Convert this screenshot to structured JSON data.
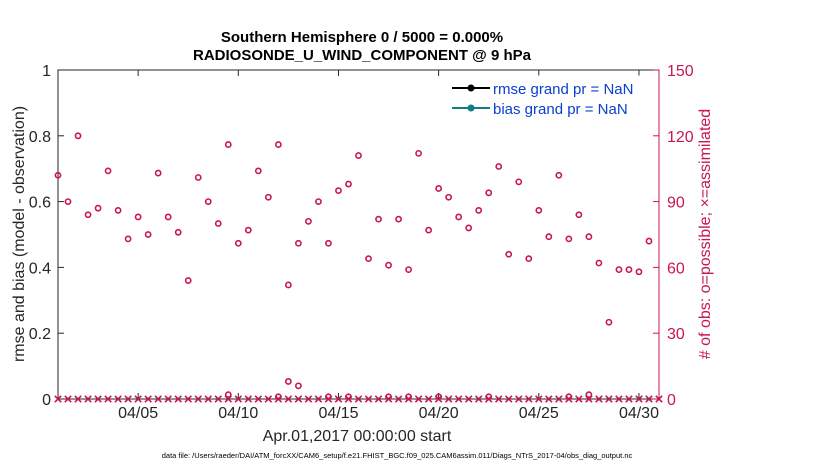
{
  "chart_data": {
    "type": "scatter",
    "title_line1": "Southern Hemisphere 0 / 5000 = 0.000%",
    "title_line2": "RADIOSONDE_U_WIND_COMPONENT @ 9 hPa",
    "xlabel": "Apr.01,2017 00:00:00 start",
    "ylabel_left": "rmse and bias (model - observation)",
    "ylabel_right": "# of obs: o=possible; ×=assimilated",
    "xlim": [
      1,
      31
    ],
    "ylim_left": [
      0,
      1
    ],
    "ylim_right": [
      0,
      150
    ],
    "x_ticks": [
      5,
      10,
      15,
      20,
      25,
      30
    ],
    "x_tick_labels": [
      "04/05",
      "04/10",
      "04/15",
      "04/20",
      "04/25",
      "04/30"
    ],
    "y_left_ticks": [
      0,
      0.2,
      0.4,
      0.6,
      0.8,
      1
    ],
    "y_left_tick_labels": [
      "0",
      "0.2",
      "0.4",
      "0.6",
      "0.8",
      "1"
    ],
    "y_right_ticks": [
      0,
      30,
      60,
      90,
      120,
      150
    ],
    "y_right_tick_labels": [
      "0",
      "30",
      "60",
      "90",
      "120",
      "150"
    ],
    "legend": [
      {
        "label": "rmse grand pr = NaN",
        "color": "#000000"
      },
      {
        "label": "bias grand pr = NaN",
        "color": "#0e7f80"
      }
    ],
    "legend_position": "top-right",
    "colors": {
      "obs": "#c8174e",
      "right_axis": "#c8174e",
      "legend_text": "#0a3fd0"
    },
    "series": [
      {
        "name": "possible",
        "marker": "o",
        "x": [
          1.0,
          1.5,
          2.0,
          2.5,
          3.0,
          3.5,
          4.0,
          4.5,
          5.0,
          5.5,
          6.0,
          6.5,
          7.0,
          7.5,
          8.0,
          8.5,
          9.0,
          9.5,
          10.0,
          10.5,
          11.0,
          11.5,
          12.0,
          12.5,
          13.0,
          13.5,
          14.0,
          14.5,
          15.0,
          15.5,
          16.0,
          16.5,
          17.0,
          17.5,
          18.0,
          18.5,
          19.0,
          19.5,
          20.0,
          20.5,
          21.0,
          21.5,
          22.0,
          22.5,
          23.0,
          23.5,
          24.0,
          24.5,
          25.0,
          25.5,
          26.0,
          26.5,
          27.0,
          27.5,
          28.0,
          28.5,
          29.0,
          29.5,
          30.0,
          30.5
        ],
        "y": [
          102,
          90,
          120,
          84,
          87,
          104,
          86,
          73,
          83,
          75,
          103,
          83,
          76,
          54,
          101,
          90,
          80,
          116,
          71,
          77,
          104,
          92,
          116,
          52,
          71,
          81,
          90,
          71,
          95,
          98,
          111,
          64,
          82,
          61,
          82,
          59,
          112,
          77,
          96,
          92,
          83,
          78,
          86,
          94,
          106,
          66,
          99,
          64,
          86,
          74,
          102,
          73,
          84,
          74,
          62,
          35,
          59,
          59,
          58,
          72
        ]
      },
      {
        "name": "low-possible",
        "marker": "o",
        "x": [
          9.5,
          12.0,
          12.5,
          13.0,
          14.5,
          15.5,
          17.5,
          18.5,
          20.0,
          22.5,
          26.5,
          27.5
        ],
        "y": [
          2,
          1,
          8,
          6,
          1,
          1,
          1,
          1,
          1,
          1,
          1,
          2
        ]
      },
      {
        "name": "assimilated",
        "marker": "x",
        "x": [
          1.0,
          1.5,
          2.0,
          2.5,
          3.0,
          3.5,
          4.0,
          4.5,
          5.0,
          5.5,
          6.0,
          6.5,
          7.0,
          7.5,
          8.0,
          8.5,
          9.0,
          9.5,
          10.0,
          10.5,
          11.0,
          11.5,
          12.0,
          12.5,
          13.0,
          13.5,
          14.0,
          14.5,
          15.0,
          15.5,
          16.0,
          16.5,
          17.0,
          17.5,
          18.0,
          18.5,
          19.0,
          19.5,
          20.0,
          20.5,
          21.0,
          21.5,
          22.0,
          22.5,
          23.0,
          23.5,
          24.0,
          24.5,
          25.0,
          25.5,
          26.0,
          26.5,
          27.0,
          27.5,
          28.0,
          28.5,
          29.0,
          29.5,
          30.0,
          30.5,
          31.0
        ],
        "y": [
          0,
          0,
          0,
          0,
          0,
          0,
          0,
          0,
          0,
          0,
          0,
          0,
          0,
          0,
          0,
          0,
          0,
          0,
          0,
          0,
          0,
          0,
          0,
          0,
          0,
          0,
          0,
          0,
          0,
          0,
          0,
          0,
          0,
          0,
          0,
          0,
          0,
          0,
          0,
          0,
          0,
          0,
          0,
          0,
          0,
          0,
          0,
          0,
          0,
          0,
          0,
          0,
          0,
          0,
          0,
          0,
          0,
          0,
          0,
          0,
          0
        ]
      }
    ],
    "footer": "data file: /Users/raeder/DAI/ATM_forcXX/CAM6_setup/f.e21.FHIST_BGC.f09_025.CAM6assim.011/Diags_NTrS_2017-04/obs_diag_output.nc"
  }
}
